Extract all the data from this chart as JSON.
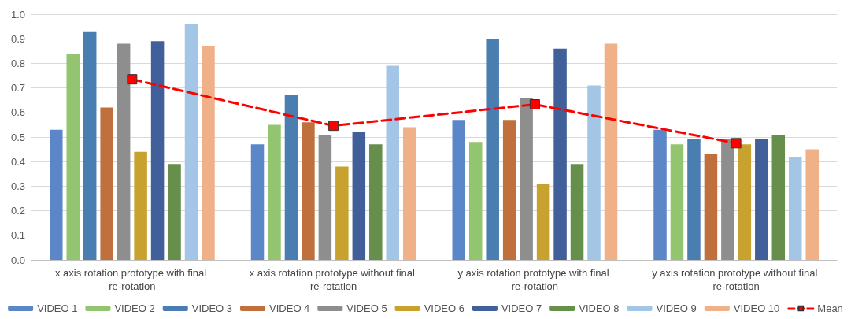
{
  "chart_data": {
    "type": "bar",
    "categories": [
      "x axis rotation prototype with final re-rotation",
      "x axis rotation prototype without final re-rotation",
      "y axis rotation prototype with final re-rotation",
      "y axis rotation prototype without final re-rotation"
    ],
    "series": [
      {
        "name": "VIDEO 1",
        "color": "#5b87c9",
        "values": [
          0.53,
          0.47,
          0.57,
          0.53
        ]
      },
      {
        "name": "VIDEO 2",
        "color": "#93c46f",
        "values": [
          0.84,
          0.55,
          0.48,
          0.47
        ]
      },
      {
        "name": "VIDEO 3",
        "color": "#4a7db0",
        "values": [
          0.93,
          0.67,
          0.9,
          0.49
        ]
      },
      {
        "name": "VIDEO 4",
        "color": "#c0703c",
        "values": [
          0.62,
          0.56,
          0.57,
          0.43
        ]
      },
      {
        "name": "VIDEO 5",
        "color": "#8e8e8e",
        "values": [
          0.88,
          0.51,
          0.66,
          0.49
        ]
      },
      {
        "name": "VIDEO 6",
        "color": "#c8a22e",
        "values": [
          0.44,
          0.38,
          0.31,
          0.47
        ]
      },
      {
        "name": "VIDEO 7",
        "color": "#41609a",
        "values": [
          0.89,
          0.52,
          0.86,
          0.49
        ]
      },
      {
        "name": "VIDEO 8",
        "color": "#668f4c",
        "values": [
          0.39,
          0.47,
          0.39,
          0.51
        ]
      },
      {
        "name": "VIDEO 9",
        "color": "#a3c6e6",
        "values": [
          0.96,
          0.79,
          0.71,
          0.42
        ]
      },
      {
        "name": "VIDEO 10",
        "color": "#f0b088",
        "values": [
          0.87,
          0.54,
          0.88,
          0.45
        ]
      },
      {
        "name": "Mean",
        "type": "line",
        "color": "#ff0000",
        "marker": "square",
        "line_style": "dashed",
        "values": [
          0.735,
          0.546,
          0.633,
          0.475
        ]
      }
    ],
    "ylim": [
      0,
      1
    ],
    "yticks": [
      {
        "value": 0,
        "label": "0.0"
      },
      {
        "value": 0.1,
        "label": "0.1"
      },
      {
        "value": 0.2,
        "label": "0.2"
      },
      {
        "value": 0.3,
        "label": "0.3"
      },
      {
        "value": 0.4,
        "label": "0.4"
      },
      {
        "value": 0.5,
        "label": "0.5"
      },
      {
        "value": 0.6,
        "label": "0.6"
      },
      {
        "value": 0.7,
        "label": "0.7"
      },
      {
        "value": 0.8,
        "label": "0.8"
      },
      {
        "value": 0.9,
        "label": "0.9"
      },
      {
        "value": 1,
        "label": "1.0"
      }
    ],
    "grid": "y",
    "legend": "bottom"
  }
}
